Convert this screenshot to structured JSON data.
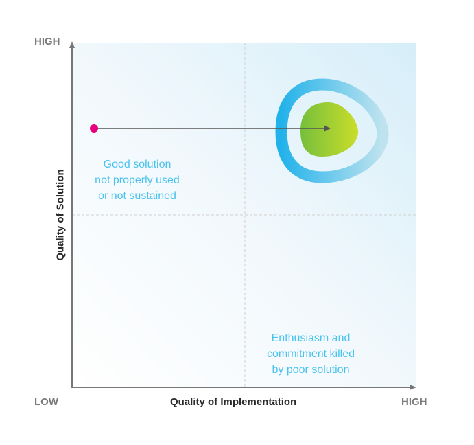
{
  "axes": {
    "y_high": "HIGH",
    "x_low": "LOW",
    "x_high": "HIGH",
    "x_title": "Quality of Implementation",
    "y_title": "Quality of Solution"
  },
  "quadrants": {
    "top_left": [
      "Good solution",
      "not properly used",
      "or not sustained"
    ],
    "bottom_right": [
      "Enthusiasm and",
      "commitment killed",
      "by poor solution"
    ]
  },
  "colors": {
    "dot": "#e6007e",
    "ring": "#2db7ea",
    "core_start": "#7cc23c",
    "core_end": "#c8dc2a",
    "text_quadrant": "#49c3ee"
  }
}
